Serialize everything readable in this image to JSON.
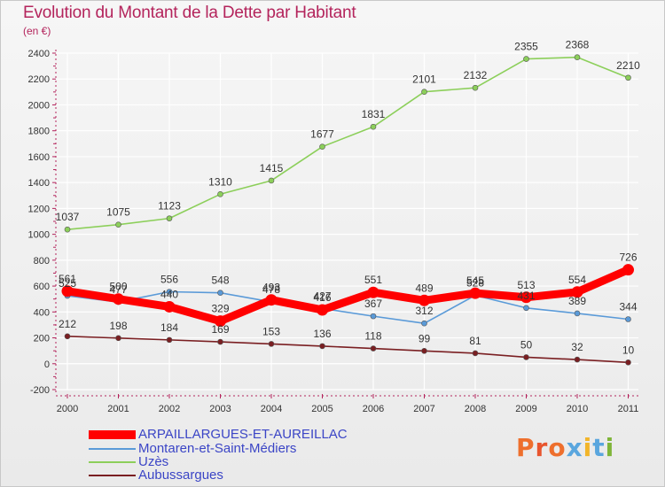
{
  "title": "Evolution du Montant de la Dette par Habitant",
  "subtitle": "(en €)",
  "logo": {
    "text": "Proxiti",
    "colors": [
      "#ee6f2d",
      "#e8552e",
      "#ee6f2d",
      "#5aa6de",
      "#f2b52a",
      "#5aa6de",
      "#7fb539"
    ]
  },
  "chart_data": {
    "type": "line",
    "x": [
      "2000",
      "2001",
      "2002",
      "2003",
      "2004",
      "2005",
      "2006",
      "2007",
      "2008",
      "2009",
      "2010",
      "2011"
    ],
    "ylim": [
      -200,
      2400
    ],
    "yticks": [
      "-200",
      "0",
      "200",
      "400",
      "600",
      "800",
      "1000",
      "1200",
      "1400",
      "1600",
      "1800",
      "2000",
      "2200",
      "2400"
    ],
    "grid": true,
    "legend_position": "bottom-left",
    "series": [
      {
        "name": "Aubussargues",
        "color": "#7a1f22",
        "values": [
          212,
          198,
          184,
          169,
          153,
          136,
          118,
          99,
          81,
          50,
          32,
          10
        ],
        "labels": [
          "212",
          "198",
          "184",
          "169",
          "153",
          "136",
          "118",
          "99",
          "81",
          "50",
          "32",
          "10"
        ]
      },
      {
        "name": "Montaren-et-Saint-Médiers",
        "color": "#5a9ad8",
        "values": [
          525,
          477,
          556,
          548,
          478,
          427,
          367,
          312,
          528,
          431,
          389,
          344
        ],
        "labels": [
          "525",
          "477",
          "556",
          "548",
          "478",
          "427",
          "367",
          "312",
          "528",
          "431",
          "389",
          "344"
        ]
      },
      {
        "name": "Uzès",
        "color": "#8ccf5a",
        "values": [
          1037,
          1075,
          1123,
          1310,
          1415,
          1677,
          1831,
          2101,
          2132,
          2355,
          2368,
          2210
        ],
        "labels": [
          "1037",
          "1075",
          "1123",
          "1310",
          "1415",
          "1677",
          "1831",
          "2101",
          "2132",
          "2355",
          "2368",
          "2210"
        ]
      },
      {
        "name": "ARPAILLARGUES-ET-AUREILLAC",
        "color": "#ff0000",
        "emphasis": true,
        "values": [
          561,
          500,
          440,
          329,
          493,
          416,
          551,
          489,
          545,
          513,
          554,
          726
        ],
        "labels": [
          "561",
          "500",
          "440",
          "329",
          "493",
          "416",
          "551",
          "489",
          "545",
          "513",
          "554",
          "726"
        ]
      }
    ],
    "legend": [
      {
        "label": "ARPAILLARGUES-ET-AUREILLAC",
        "color": "#ff0000",
        "thick": true
      },
      {
        "label": "Montaren-et-Saint-Médiers",
        "color": "#5a9ad8",
        "thick": false
      },
      {
        "label": "Uzès",
        "color": "#8ccf5a",
        "thick": false
      },
      {
        "label": "Aubussargues",
        "color": "#7a1f22",
        "thick": false
      }
    ]
  }
}
